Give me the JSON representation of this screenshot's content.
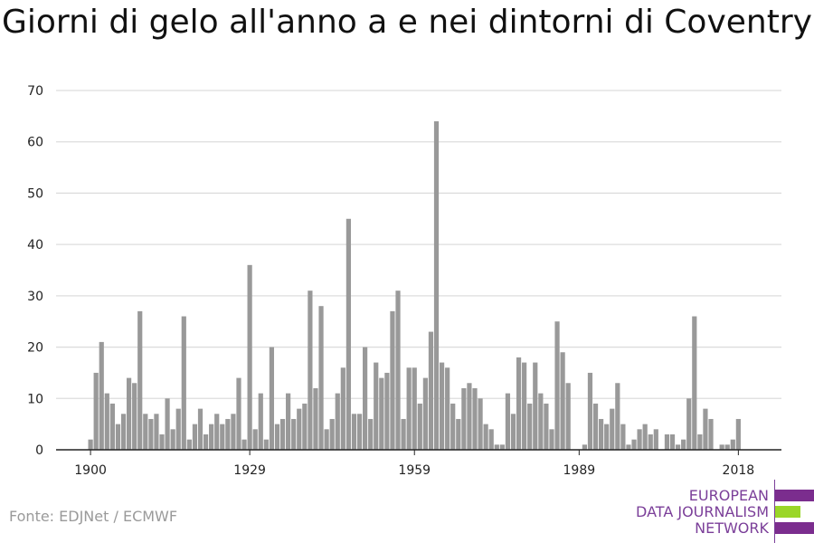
{
  "chart_data": {
    "type": "bar",
    "title": "Giorni di gelo all'anno a e nei dintorni di Coventry",
    "xlabel": "",
    "ylabel": "",
    "x": [
      1900,
      1901,
      1902,
      1903,
      1904,
      1905,
      1906,
      1907,
      1908,
      1909,
      1910,
      1911,
      1912,
      1913,
      1914,
      1915,
      1916,
      1917,
      1918,
      1919,
      1920,
      1921,
      1922,
      1923,
      1924,
      1925,
      1926,
      1927,
      1928,
      1929,
      1930,
      1931,
      1932,
      1933,
      1934,
      1935,
      1936,
      1937,
      1938,
      1939,
      1940,
      1941,
      1942,
      1943,
      1944,
      1945,
      1946,
      1947,
      1948,
      1949,
      1950,
      1951,
      1952,
      1953,
      1954,
      1955,
      1956,
      1957,
      1958,
      1959,
      1960,
      1961,
      1962,
      1963,
      1964,
      1965,
      1966,
      1967,
      1968,
      1969,
      1970,
      1971,
      1972,
      1973,
      1974,
      1975,
      1976,
      1977,
      1978,
      1979,
      1980,
      1981,
      1982,
      1983,
      1984,
      1985,
      1986,
      1987,
      1988,
      1989,
      1990,
      1991,
      1992,
      1993,
      1994,
      1995,
      1996,
      1997,
      1998,
      1999,
      2000,
      2001,
      2002,
      2003,
      2004,
      2005,
      2006,
      2007,
      2008,
      2009,
      2010,
      2011,
      2012,
      2013,
      2014,
      2015,
      2016,
      2017,
      2018,
      2019
    ],
    "values": [
      2,
      15,
      21,
      11,
      9,
      5,
      7,
      14,
      13,
      27,
      7,
      6,
      7,
      3,
      10,
      4,
      8,
      26,
      2,
      5,
      8,
      3,
      5,
      7,
      5,
      6,
      7,
      14,
      2,
      36,
      4,
      11,
      2,
      20,
      5,
      6,
      11,
      6,
      8,
      9,
      31,
      12,
      28,
      4,
      6,
      11,
      16,
      45,
      7,
      7,
      20,
      6,
      17,
      14,
      15,
      27,
      31,
      6,
      16,
      16,
      9,
      14,
      23,
      64,
      17,
      16,
      9,
      6,
      12,
      13,
      12,
      10,
      5,
      4,
      1,
      1,
      11,
      7,
      18,
      17,
      9,
      17,
      11,
      9,
      4,
      25,
      19,
      13,
      0,
      0,
      1,
      15,
      9,
      6,
      5,
      8,
      13,
      5,
      1,
      2,
      4,
      5,
      3,
      4,
      0,
      3,
      3,
      1,
      2,
      10,
      26,
      3,
      8,
      6,
      0,
      1,
      1,
      2,
      6,
      0
    ],
    "xticks": [
      1900,
      1929,
      1959,
      1989,
      2018
    ],
    "yticks": [
      0,
      10,
      20,
      30,
      40,
      50,
      60,
      70
    ],
    "ylim": [
      0,
      70
    ],
    "grid": true,
    "bar_color": "#999999",
    "grid_color": "#dddddd",
    "axis_color": "#222222"
  },
  "source": "Fonte: EDJNet / ECMWF",
  "logo": {
    "lines": [
      "EUROPEAN",
      "DATA JOURNALISM",
      "NETWORK"
    ],
    "purple": "#7b2d8e",
    "green": "#9ad628"
  }
}
